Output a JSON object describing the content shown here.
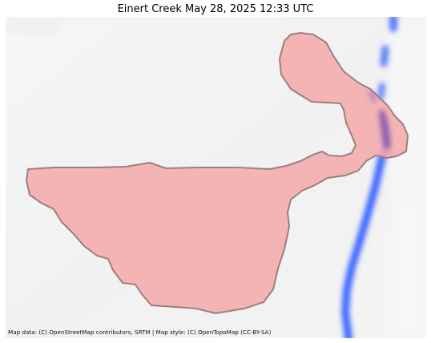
{
  "map": {
    "title": "Einert Creek May 28, 2025 12:33 UTC",
    "attribution": "Map data: (C) OpenStreetMap contributors, SRTM | Map style: (C) OpenTopoMap (CC-BY-SA)",
    "layers": {
      "basemap": "basemap-tiles",
      "flood_area": "flood-extent-polygon",
      "stream": "creek-stream-line"
    },
    "colors": {
      "background": "#f3f3f3",
      "flood_fill": "#f4a6a6",
      "flood_stroke": "#a08080",
      "stream": "#2f5cff",
      "stream_overlap": "#5a2fb0"
    }
  }
}
